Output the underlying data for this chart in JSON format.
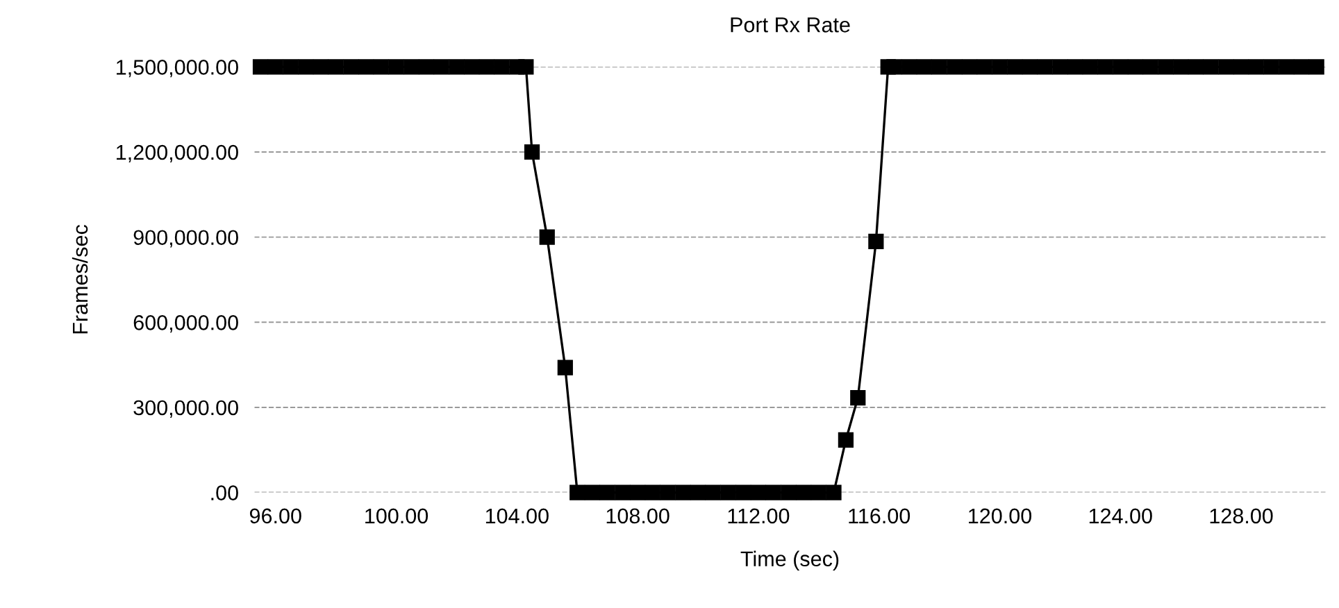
{
  "chart_data": {
    "type": "line",
    "title": "Port Rx Rate",
    "xlabel": "Time (sec)",
    "ylabel": "Frames/sec",
    "x": [
      95.5,
      96,
      96.5,
      97,
      97.5,
      98,
      98.5,
      99,
      99.5,
      100,
      100.5,
      101,
      101.5,
      102,
      102.5,
      103,
      103.5,
      104,
      104.3,
      104.5,
      105.0,
      105.6,
      106.0,
      106.5,
      107,
      107.5,
      108,
      108.5,
      109,
      109.5,
      110,
      110.5,
      111,
      111.5,
      112,
      112.5,
      113,
      113.5,
      114,
      114.5,
      114.9,
      115.3,
      115.9,
      116.3,
      116.5,
      117,
      117.5,
      118,
      118.5,
      119,
      119.5,
      120,
      120.5,
      121,
      121.5,
      122,
      122.5,
      123,
      123.5,
      124,
      124.5,
      125,
      125.5,
      126,
      126.5,
      127,
      127.5,
      128,
      128.5,
      129,
      129.5,
      130,
      130.5
    ],
    "series": [
      {
        "color": "#000000",
        "values": [
          1500000,
          1500000,
          1500000,
          1500000,
          1500000,
          1500000,
          1500000,
          1500000,
          1500000,
          1500000,
          1500000,
          1500000,
          1500000,
          1500000,
          1500000,
          1500000,
          1500000,
          1500000,
          1500000,
          1200000,
          900000,
          440000,
          0,
          0,
          0,
          0,
          0,
          0,
          0,
          0,
          0,
          0,
          0,
          0,
          0,
          0,
          0,
          0,
          0,
          0,
          185000,
          334000,
          885000,
          1500000,
          1500000,
          1500000,
          1500000,
          1500000,
          1500000,
          1500000,
          1500000,
          1500000,
          1500000,
          1500000,
          1500000,
          1500000,
          1500000,
          1500000,
          1500000,
          1500000,
          1500000,
          1500000,
          1500000,
          1500000,
          1500000,
          1500000,
          1500000,
          1500000,
          1500000,
          1500000,
          1500000,
          1500000,
          1500000
        ]
      }
    ],
    "xlim": [
      95.3,
      130.8
    ],
    "xticks": [
      {
        "value": 96,
        "label": "96.00"
      },
      {
        "value": 100,
        "label": "100.00"
      },
      {
        "value": 104,
        "label": "104.00"
      },
      {
        "value": 108,
        "label": "108.00"
      },
      {
        "value": 112,
        "label": "112.00"
      },
      {
        "value": 116,
        "label": "116.00"
      },
      {
        "value": 120,
        "label": "120.00"
      },
      {
        "value": 124,
        "label": "124.00"
      },
      {
        "value": 128,
        "label": "128.00"
      }
    ],
    "ylim": [
      0,
      1500000
    ],
    "yticks": [
      {
        "value": 0,
        "label": ".00"
      },
      {
        "value": 300000,
        "label": "300,000.00"
      },
      {
        "value": 600000,
        "label": "600,000.00"
      },
      {
        "value": 900000,
        "label": "900,000.00"
      },
      {
        "value": 1200000,
        "label": "1,200,000.00"
      },
      {
        "value": 1500000,
        "label": "1,500,000.00"
      }
    ],
    "grid": "y",
    "marker": "square",
    "line_style": "solid"
  }
}
